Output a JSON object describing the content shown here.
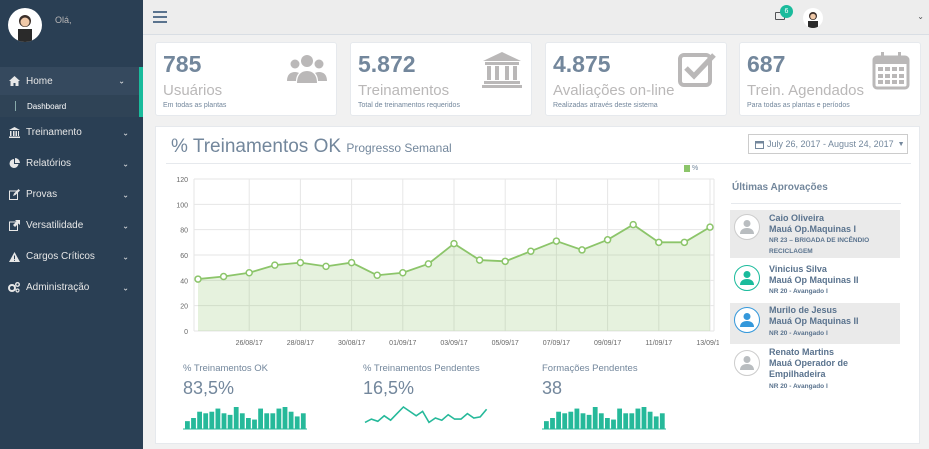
{
  "sidebar": {
    "greeting": "Olá,",
    "items": [
      {
        "label": "Home",
        "icon": "home-icon"
      },
      {
        "label": "Treinamento",
        "icon": "bank-icon"
      },
      {
        "label": "Relatórios",
        "icon": "pie-chart-icon"
      },
      {
        "label": "Provas",
        "icon": "edit-icon"
      },
      {
        "label": "Versatilidade",
        "icon": "external-link-icon"
      },
      {
        "label": "Cargos Críticos",
        "icon": "warning-icon"
      },
      {
        "label": "Administração",
        "icon": "cogs-icon"
      }
    ],
    "subitem": "Dashboard"
  },
  "topbar": {
    "mail_count": "6"
  },
  "tiles": [
    {
      "number": "785",
      "label": "Usuários",
      "desc": "Em todas as plantas",
      "icon": "users-icon"
    },
    {
      "number": "5.872",
      "label": "Treinamentos",
      "desc": "Total de treinamentos requeridos",
      "icon": "institution-icon"
    },
    {
      "number": "4.875",
      "label": "Avaliações on-line",
      "desc": "Realizadas através deste sistema",
      "icon": "check-square-icon"
    },
    {
      "number": "687",
      "label": "Trein. Agendados",
      "desc": "Para todas as plantas e períodos",
      "icon": "calendar-icon"
    }
  ],
  "panel": {
    "title": "% Treinamentos OK",
    "subtitle": "Progresso Semanal",
    "daterange": "July 26, 2017 - August 24, 2017"
  },
  "chart_data": {
    "type": "area",
    "legend": "%",
    "ylim": [
      0,
      120
    ],
    "yticks": [
      "120",
      "100",
      "80",
      "60",
      "40",
      "20",
      "0"
    ],
    "xticks": [
      "26/08/17",
      "28/08/17",
      "30/08/17",
      "01/09/17",
      "03/09/17",
      "05/09/17",
      "07/09/17",
      "09/09/17",
      "11/09/17",
      "13/09/17"
    ],
    "values": [
      41,
      43,
      46,
      52,
      54,
      51,
      54,
      44,
      46,
      53,
      69,
      56,
      55,
      63,
      71,
      64,
      72,
      84,
      70,
      70,
      82
    ],
    "color": "#8cc56a"
  },
  "approvals": {
    "title": "Últimas Aprovações",
    "items": [
      {
        "name": "Caio Oliveira",
        "line2": "Mauá Op.Maquinas I",
        "line3": "NR 23 – BRIGADA DE INCÊNDIO",
        "line4": "RECICLAGEM",
        "color": "#ccc"
      },
      {
        "name": "Vinicius Silva",
        "line2": "Mauá Op Maquinas II",
        "line3": "NR 20 - Avangado I",
        "color": "#1abb9c"
      },
      {
        "name": "Murilo de Jesus",
        "line2": "Mauá Op Maquinas II",
        "line3": "NR 20 - Avangado I",
        "color": "#3498db"
      },
      {
        "name": "Renato Martins",
        "line2": "Mauá Operador de",
        "line2b": "Empilhadeira",
        "line3": "NR 20 - Avangado I",
        "color": "#ccc"
      }
    ]
  },
  "stats": [
    {
      "label": "% Treinamentos OK",
      "value": "83,5%",
      "kind": "bars",
      "data": [
        5,
        7,
        11,
        10,
        11,
        13,
        10,
        9,
        14,
        10,
        7,
        6,
        13,
        10,
        10,
        13,
        14,
        11,
        8,
        10
      ]
    },
    {
      "label": "% Treinamentos Pendentes",
      "value": "16,5%",
      "kind": "line",
      "data": [
        6,
        9,
        7,
        12,
        8,
        14,
        20,
        16,
        12,
        16,
        6,
        10,
        8,
        13,
        9,
        9,
        14,
        10,
        11,
        18
      ]
    },
    {
      "label": "Formações Pendentes",
      "value": "38",
      "kind": "bars",
      "data": [
        5,
        7,
        11,
        10,
        11,
        13,
        10,
        9,
        14,
        10,
        7,
        6,
        13,
        10,
        10,
        13,
        14,
        11,
        8,
        10
      ]
    }
  ]
}
